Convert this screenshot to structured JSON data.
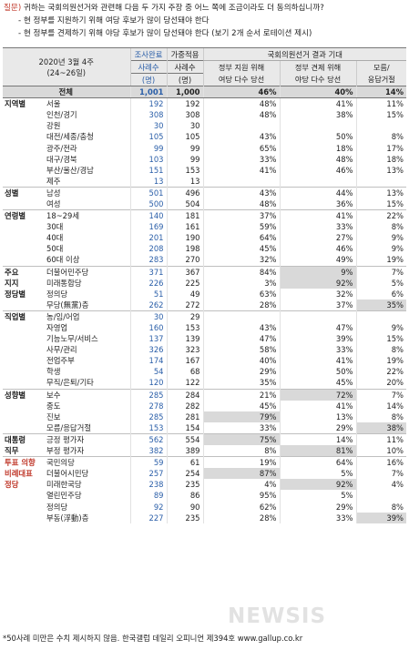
{
  "question": {
    "label": "질문)",
    "text": "귀하는 국회의원선거와 관련해 다음 두 가지 주장 중 어느 쪽에 조금이라도 더 동의하십니까?",
    "option1": "- 현 정부를 지원하기 위해 여당 후보가 많이 당선돼야 한다",
    "option2": "- 현 정부를 견제하기 위해 야당 후보가 많이 당선돼야 한다 (보기 2개 순서 로테이션 제시)"
  },
  "header": {
    "date_line1": "2020년 3월 4주",
    "date_line2": "(24~26일)",
    "col_raw_line1": "조사완료",
    "col_raw_line2": "사례수",
    "col_raw_line3": "(명)",
    "col_weighted_line1": "가중적용",
    "col_weighted_line2": "사례수",
    "col_weighted_line3": "(명)",
    "group_label": "국회의원선거 결과 기대",
    "sub1_line1": "정부 지원 위해",
    "sub1_line2": "여당 다수 당선",
    "sub2_line1": "정부 견제 위해",
    "sub2_line2": "야당 다수 당선",
    "sub3_line1": "모름/",
    "sub3_line2": "응답거절"
  },
  "groups": [
    {
      "name": "",
      "rows": [
        {
          "label": "전체",
          "n": "1,001",
          "w": "1,000",
          "a": "46%",
          "b": "40%",
          "c": "14%",
          "total": true
        }
      ]
    },
    {
      "name": "지역별",
      "rows": [
        {
          "label": "서울",
          "n": "192",
          "w": "192",
          "a": "48%",
          "b": "41%",
          "c": "11%"
        },
        {
          "label": "인천/경기",
          "n": "308",
          "w": "308",
          "a": "48%",
          "b": "38%",
          "c": "15%"
        },
        {
          "label": "강원",
          "n": "30",
          "w": "30",
          "a": "",
          "b": "",
          "c": ""
        },
        {
          "label": "대전/세종/충청",
          "n": "105",
          "w": "105",
          "a": "43%",
          "b": "50%",
          "c": "8%"
        },
        {
          "label": "광주/전라",
          "n": "99",
          "w": "99",
          "a": "65%",
          "b": "18%",
          "c": "17%"
        },
        {
          "label": "대구/경북",
          "n": "103",
          "w": "99",
          "a": "33%",
          "b": "48%",
          "c": "18%"
        },
        {
          "label": "부산/울산/경남",
          "n": "151",
          "w": "153",
          "a": "41%",
          "b": "46%",
          "c": "13%"
        },
        {
          "label": "제주",
          "n": "13",
          "w": "13",
          "a": "",
          "b": "",
          "c": ""
        }
      ]
    },
    {
      "name": "성별",
      "rows": [
        {
          "label": "남성",
          "n": "501",
          "w": "496",
          "a": "43%",
          "b": "44%",
          "c": "13%"
        },
        {
          "label": "여성",
          "n": "500",
          "w": "504",
          "a": "48%",
          "b": "36%",
          "c": "15%"
        }
      ]
    },
    {
      "name": "연령별",
      "rows": [
        {
          "label": "18~29세",
          "n": "140",
          "w": "181",
          "a": "37%",
          "b": "41%",
          "c": "22%"
        },
        {
          "label": "30대",
          "n": "169",
          "w": "161",
          "a": "59%",
          "b": "33%",
          "c": "8%"
        },
        {
          "label": "40대",
          "n": "201",
          "w": "190",
          "a": "64%",
          "b": "27%",
          "c": "9%"
        },
        {
          "label": "50대",
          "n": "208",
          "w": "198",
          "a": "45%",
          "b": "46%",
          "c": "9%"
        },
        {
          "label": "60대 이상",
          "n": "283",
          "w": "270",
          "a": "32%",
          "b": "49%",
          "c": "19%"
        }
      ]
    },
    {
      "name": "주요",
      "name2": "지지",
      "name3": "정당별",
      "rows": [
        {
          "label": "더불어민주당",
          "n": "371",
          "w": "367",
          "a": "84%",
          "b": "9%",
          "c": "7%",
          "hlb": true
        },
        {
          "label": "미래통합당",
          "n": "226",
          "w": "225",
          "a": "3%",
          "b": "92%",
          "c": "5%",
          "hlb": true
        },
        {
          "label": "정의당",
          "n": "51",
          "w": "49",
          "a": "63%",
          "b": "32%",
          "c": "6%"
        },
        {
          "label": "무당(無黨)층",
          "n": "262",
          "w": "272",
          "a": "28%",
          "b": "37%",
          "c": "35%",
          "hlc": true
        }
      ]
    },
    {
      "name": "직업별",
      "rows": [
        {
          "label": "농/임/어업",
          "n": "30",
          "w": "29",
          "a": "",
          "b": "",
          "c": ""
        },
        {
          "label": "자영업",
          "n": "160",
          "w": "153",
          "a": "43%",
          "b": "47%",
          "c": "9%"
        },
        {
          "label": "기능노무/서비스",
          "n": "137",
          "w": "139",
          "a": "47%",
          "b": "39%",
          "c": "15%"
        },
        {
          "label": "사무/관리",
          "n": "326",
          "w": "323",
          "a": "58%",
          "b": "33%",
          "c": "8%"
        },
        {
          "label": "전업주부",
          "n": "174",
          "w": "167",
          "a": "40%",
          "b": "41%",
          "c": "19%"
        },
        {
          "label": "학생",
          "n": "54",
          "w": "68",
          "a": "29%",
          "b": "50%",
          "c": "22%"
        },
        {
          "label": "무직/은퇴/기타",
          "n": "120",
          "w": "122",
          "a": "35%",
          "b": "45%",
          "c": "20%"
        }
      ]
    },
    {
      "name": "성향별",
      "rows": [
        {
          "label": "보수",
          "n": "285",
          "w": "284",
          "a": "21%",
          "b": "72%",
          "c": "7%",
          "hlb": true
        },
        {
          "label": "중도",
          "n": "278",
          "w": "282",
          "a": "45%",
          "b": "41%",
          "c": "14%"
        },
        {
          "label": "진보",
          "n": "285",
          "w": "281",
          "a": "79%",
          "b": "13%",
          "c": "8%",
          "hla": true
        },
        {
          "label": "모름/응답거절",
          "n": "153",
          "w": "154",
          "a": "33%",
          "b": "29%",
          "c": "38%",
          "hlc": true
        }
      ]
    },
    {
      "name": "대통령",
      "name2": "직무",
      "rows": [
        {
          "label": "긍정 평가자",
          "n": "562",
          "w": "554",
          "a": "75%",
          "b": "14%",
          "c": "11%",
          "hla": true
        },
        {
          "label": "부정 평가자",
          "n": "382",
          "w": "389",
          "a": "8%",
          "b": "81%",
          "c": "10%",
          "hlb": true
        }
      ]
    },
    {
      "name": "투표 의향",
      "name2": "비례대표",
      "name3": "정당",
      "red": true,
      "rows": [
        {
          "label": "국민의당",
          "n": "59",
          "w": "61",
          "a": "19%",
          "b": "64%",
          "c": "16%"
        },
        {
          "label": "더불어시민당",
          "n": "257",
          "w": "254",
          "a": "87%",
          "b": "5%",
          "c": "7%",
          "hla": true
        },
        {
          "label": "미래한국당",
          "n": "238",
          "w": "235",
          "a": "4%",
          "b": "92%",
          "c": "4%",
          "hlb": true
        },
        {
          "label": "열린민주당",
          "n": "89",
          "w": "86",
          "a": "95%",
          "b": "5%",
          "c": ""
        },
        {
          "label": "정의당",
          "n": "92",
          "w": "90",
          "a": "62%",
          "b": "29%",
          "c": "8%"
        },
        {
          "label": "부동(浮動)층",
          "n": "227",
          "w": "235",
          "a": "28%",
          "b": "33%",
          "c": "39%",
          "hlc": true
        }
      ]
    }
  ],
  "footnote": "*50사례 미만은 수치 제시하지 않음. 한국갤럽 데일리 오피니언 제394호 www.gallup.co.kr",
  "watermark": "NEWSIS"
}
